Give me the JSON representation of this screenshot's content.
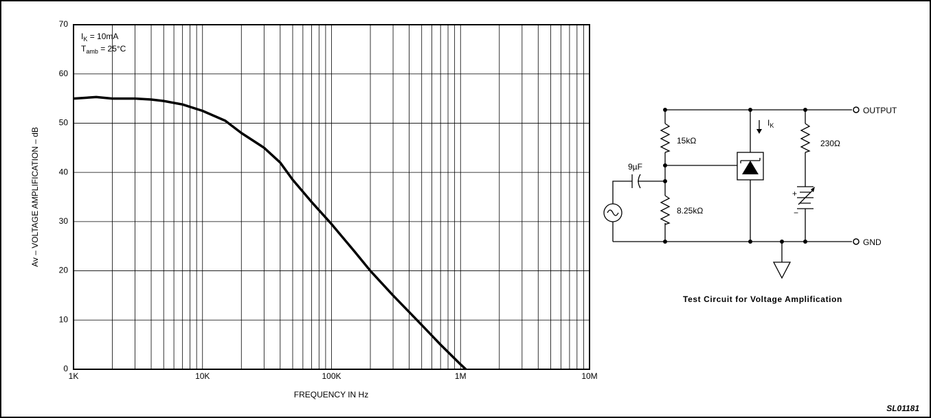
{
  "chart_data": {
    "type": "line",
    "ylabel": "Av – VOLTAGE AMPLIFICATION – dB",
    "xlabel": "FREQUENCY IN Hz",
    "annotations": [
      {
        "symbol": "I",
        "subscript": "K",
        "text": " = 10mA"
      },
      {
        "symbol": "T",
        "subscript": "amb",
        "text": " = 25°C"
      }
    ],
    "x": [
      1000,
      1500,
      2000,
      3000,
      4000,
      5000,
      7000,
      10000,
      15000,
      20000,
      30000,
      40000,
      50000,
      70000,
      100000,
      150000,
      200000,
      300000,
      500000,
      700000,
      1000000,
      1100000
    ],
    "series": [
      {
        "color": "#000000",
        "values": [
          55,
          55.3,
          55,
          55,
          54.8,
          54.5,
          53.8,
          52.5,
          50.5,
          48,
          45,
          42,
          38.5,
          34,
          29.5,
          24,
          20,
          15,
          9,
          5,
          1,
          0
        ]
      }
    ],
    "xscale": "log",
    "xlim": [
      1000,
      10000000
    ],
    "xticks": [
      {
        "value": 1000,
        "label": "1K"
      },
      {
        "value": 10000,
        "label": "10K"
      },
      {
        "value": 100000,
        "label": "100K"
      },
      {
        "value": 1000000,
        "label": "1M"
      },
      {
        "value": 10000000,
        "label": "10M"
      }
    ],
    "xminorticks": [
      2000,
      3000,
      4000,
      5000,
      6000,
      7000,
      8000,
      9000,
      20000,
      30000,
      40000,
      50000,
      60000,
      70000,
      80000,
      90000,
      200000,
      300000,
      400000,
      500000,
      600000,
      700000,
      800000,
      900000,
      2000000,
      3000000,
      4000000,
      5000000,
      6000000,
      7000000,
      8000000,
      9000000
    ],
    "ylim": [
      0,
      70
    ],
    "yticks": [
      0,
      10,
      20,
      30,
      40,
      50,
      60,
      70
    ],
    "grid": true
  },
  "circuit": {
    "r1": "15kΩ",
    "r2": "8.25kΩ",
    "capacitor": "9µF",
    "current": {
      "symbol": "I",
      "subscript": "K"
    },
    "r3": "230Ω",
    "output": "OUTPUT",
    "gnd": "GND",
    "plus": "+",
    "minus": "−",
    "caption": "Test Circuit for Voltage Amplification"
  },
  "code": "SL01181"
}
